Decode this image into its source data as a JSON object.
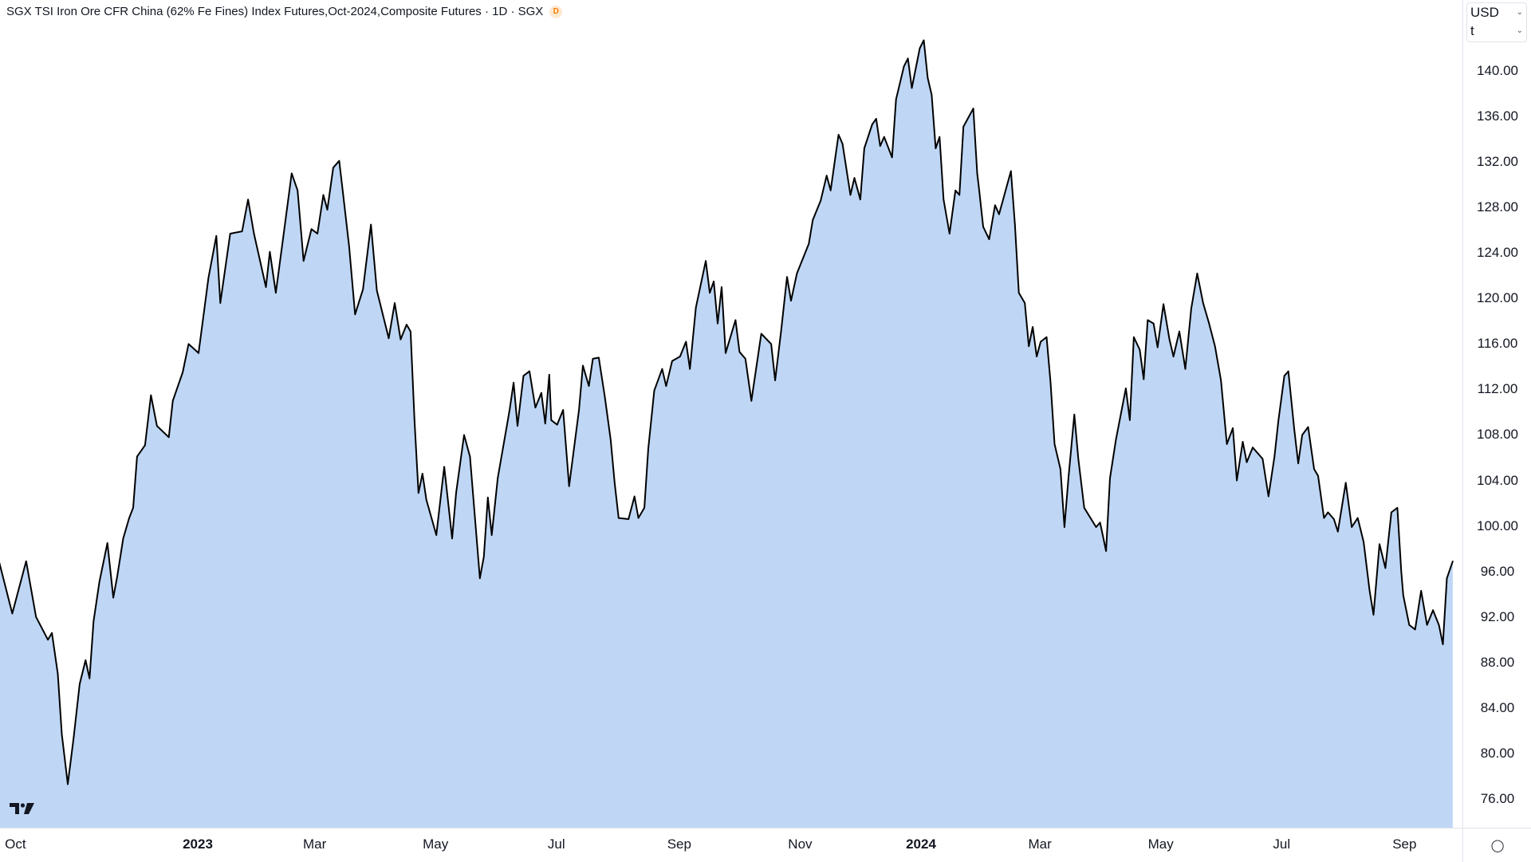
{
  "header": {
    "title": "SGX TSI Iron Ore CFR China (62% Fe Fines) Index Futures,Oct-2024,Composite Futures · 1D · SGX",
    "badge": "D"
  },
  "unit_selector": {
    "currency": "USD",
    "unit": "t"
  },
  "settings_icon": "gear-icon",
  "colors": {
    "line": "#000000",
    "area_fill": "#bfd7f5",
    "badge": "#f57c00"
  },
  "chart_data": {
    "type": "area",
    "title": "SGX TSI Iron Ore CFR China (62% Fe Fines) Index Futures,Oct-2024,Composite Futures · 1D · SGX",
    "xlabel": "",
    "ylabel": "",
    "ylim": [
      72.5,
      146.5
    ],
    "grid": false,
    "legend": "none",
    "y_ticks": [
      "140.00",
      "136.00",
      "132.00",
      "128.00",
      "124.00",
      "120.00",
      "116.00",
      "112.00",
      "108.00",
      "104.00",
      "100.00",
      "96.00",
      "92.00",
      "88.00",
      "84.00",
      "80.00",
      "76.00"
    ],
    "x_ticks": [
      {
        "label": "Oct",
        "date": "2022-10-01",
        "year": false
      },
      {
        "label": "2023",
        "date": "2023-01-01",
        "year": true
      },
      {
        "label": "Mar",
        "date": "2023-03-01",
        "year": false
      },
      {
        "label": "May",
        "date": "2023-05-01",
        "year": false
      },
      {
        "label": "Jul",
        "date": "2023-07-01",
        "year": false
      },
      {
        "label": "Sep",
        "date": "2023-09-01",
        "year": false
      },
      {
        "label": "Nov",
        "date": "2023-11-01",
        "year": false
      },
      {
        "label": "2024",
        "date": "2024-01-01",
        "year": true
      },
      {
        "label": "Mar",
        "date": "2024-03-01",
        "year": false
      },
      {
        "label": "May",
        "date": "2024-05-01",
        "year": false
      },
      {
        "label": "Jul",
        "date": "2024-07-01",
        "year": false
      },
      {
        "label": "Sep",
        "date": "2024-09-01",
        "year": false
      }
    ],
    "series": [
      {
        "points": [
          [
            "2022-09-24",
            97.1
          ],
          [
            "2022-10-01",
            92.3
          ],
          [
            "2022-10-08",
            96.9
          ],
          [
            "2022-10-13",
            92.0
          ],
          [
            "2022-10-19",
            90.0
          ],
          [
            "2022-10-21",
            90.6
          ],
          [
            "2022-10-24",
            87.0
          ],
          [
            "2022-10-26",
            81.7
          ],
          [
            "2022-10-29",
            77.3
          ],
          [
            "2022-11-01",
            81.4
          ],
          [
            "2022-11-04",
            86.1
          ],
          [
            "2022-11-07",
            88.2
          ],
          [
            "2022-11-09",
            86.6
          ],
          [
            "2022-11-11",
            91.6
          ],
          [
            "2022-11-14",
            95.1
          ],
          [
            "2022-11-18",
            98.5
          ],
          [
            "2022-11-21",
            93.7
          ],
          [
            "2022-11-23",
            95.6
          ],
          [
            "2022-11-26",
            98.9
          ],
          [
            "2022-11-29",
            100.7
          ],
          [
            "2022-12-01",
            101.6
          ],
          [
            "2022-12-03",
            106.1
          ],
          [
            "2022-12-07",
            107.1
          ],
          [
            "2022-12-10",
            111.5
          ],
          [
            "2022-12-13",
            108.8
          ],
          [
            "2022-12-19",
            107.8
          ],
          [
            "2022-12-21",
            111.0
          ],
          [
            "2022-12-26",
            113.5
          ],
          [
            "2022-12-29",
            116.0
          ],
          [
            "2023-01-03",
            115.2
          ],
          [
            "2023-01-05",
            117.8
          ],
          [
            "2023-01-08",
            121.8
          ],
          [
            "2023-01-12",
            125.5
          ],
          [
            "2023-01-14",
            119.6
          ],
          [
            "2023-01-19",
            125.7
          ],
          [
            "2023-01-25",
            125.9
          ],
          [
            "2023-01-28",
            128.7
          ],
          [
            "2023-01-31",
            125.7
          ],
          [
            "2023-02-06",
            121.0
          ],
          [
            "2023-02-08",
            124.1
          ],
          [
            "2023-02-11",
            120.5
          ],
          [
            "2023-02-15",
            125.7
          ],
          [
            "2023-02-19",
            131.0
          ],
          [
            "2023-02-22",
            129.5
          ],
          [
            "2023-02-25",
            123.3
          ],
          [
            "2023-03-01",
            126.1
          ],
          [
            "2023-03-04",
            125.7
          ],
          [
            "2023-03-07",
            129.1
          ],
          [
            "2023-03-09",
            127.8
          ],
          [
            "2023-03-12",
            131.5
          ],
          [
            "2023-03-15",
            132.1
          ],
          [
            "2023-03-17",
            129.1
          ],
          [
            "2023-03-20",
            124.6
          ],
          [
            "2023-03-23",
            118.6
          ],
          [
            "2023-03-27",
            120.8
          ],
          [
            "2023-03-31",
            126.5
          ],
          [
            "2023-04-03",
            120.7
          ],
          [
            "2023-04-09",
            116.5
          ],
          [
            "2023-04-12",
            119.6
          ],
          [
            "2023-04-15",
            116.4
          ],
          [
            "2023-04-18",
            117.7
          ],
          [
            "2023-04-20",
            117.1
          ],
          [
            "2023-04-22",
            109.3
          ],
          [
            "2023-04-24",
            102.9
          ],
          [
            "2023-04-26",
            104.6
          ],
          [
            "2023-04-28",
            102.3
          ],
          [
            "2023-05-03",
            99.2
          ],
          [
            "2023-05-07",
            105.2
          ],
          [
            "2023-05-11",
            98.9
          ],
          [
            "2023-05-13",
            102.9
          ],
          [
            "2023-05-17",
            108.0
          ],
          [
            "2023-05-20",
            106.1
          ],
          [
            "2023-05-25",
            95.4
          ],
          [
            "2023-05-27",
            97.3
          ],
          [
            "2023-05-29",
            102.5
          ],
          [
            "2023-05-31",
            99.2
          ],
          [
            "2023-06-03",
            104.2
          ],
          [
            "2023-06-09",
            110.2
          ],
          [
            "2023-06-11",
            112.6
          ],
          [
            "2023-06-13",
            108.8
          ],
          [
            "2023-06-16",
            113.2
          ],
          [
            "2023-06-19",
            113.6
          ],
          [
            "2023-06-22",
            110.4
          ],
          [
            "2023-06-25",
            111.7
          ],
          [
            "2023-06-27",
            109.0
          ],
          [
            "2023-06-29",
            113.3
          ],
          [
            "2023-06-30",
            109.3
          ],
          [
            "2023-07-03",
            108.9
          ],
          [
            "2023-07-06",
            110.2
          ],
          [
            "2023-07-09",
            103.5
          ],
          [
            "2023-07-14",
            110.2
          ],
          [
            "2023-07-16",
            114.1
          ],
          [
            "2023-07-19",
            112.3
          ],
          [
            "2023-07-21",
            114.7
          ],
          [
            "2023-07-24",
            114.8
          ],
          [
            "2023-07-27",
            111.4
          ],
          [
            "2023-07-30",
            107.6
          ],
          [
            "2023-08-01",
            103.8
          ],
          [
            "2023-08-03",
            100.7
          ],
          [
            "2023-08-08",
            100.6
          ],
          [
            "2023-08-11",
            102.6
          ],
          [
            "2023-08-13",
            100.7
          ],
          [
            "2023-08-16",
            101.6
          ],
          [
            "2023-08-18",
            106.8
          ],
          [
            "2023-08-21",
            111.9
          ],
          [
            "2023-08-25",
            113.8
          ],
          [
            "2023-08-27",
            112.3
          ],
          [
            "2023-08-30",
            114.5
          ],
          [
            "2023-09-03",
            114.9
          ],
          [
            "2023-09-06",
            116.2
          ],
          [
            "2023-09-08",
            113.8
          ],
          [
            "2023-09-11",
            119.2
          ],
          [
            "2023-09-16",
            123.3
          ],
          [
            "2023-09-18",
            120.5
          ],
          [
            "2023-09-20",
            121.5
          ],
          [
            "2023-09-22",
            117.8
          ],
          [
            "2023-09-24",
            121.0
          ],
          [
            "2023-09-26",
            115.2
          ],
          [
            "2023-10-01",
            118.1
          ],
          [
            "2023-10-03",
            115.3
          ],
          [
            "2023-10-06",
            114.7
          ],
          [
            "2023-10-09",
            111.0
          ],
          [
            "2023-10-14",
            116.9
          ],
          [
            "2023-10-19",
            116.0
          ],
          [
            "2023-10-21",
            112.8
          ],
          [
            "2023-10-24",
            117.1
          ],
          [
            "2023-10-27",
            121.9
          ],
          [
            "2023-10-29",
            119.8
          ],
          [
            "2023-11-01",
            122.2
          ],
          [
            "2023-11-07",
            124.8
          ],
          [
            "2023-11-09",
            126.9
          ],
          [
            "2023-11-13",
            128.6
          ],
          [
            "2023-11-16",
            130.8
          ],
          [
            "2023-11-18",
            129.5
          ],
          [
            "2023-11-22",
            134.4
          ],
          [
            "2023-11-24",
            133.6
          ],
          [
            "2023-11-28",
            129.1
          ],
          [
            "2023-11-30",
            130.6
          ],
          [
            "2023-12-03",
            128.7
          ],
          [
            "2023-12-05",
            133.2
          ],
          [
            "2023-12-09",
            135.3
          ],
          [
            "2023-12-11",
            135.8
          ],
          [
            "2023-12-13",
            133.4
          ],
          [
            "2023-12-15",
            134.2
          ],
          [
            "2023-12-19",
            132.4
          ],
          [
            "2023-12-21",
            137.5
          ],
          [
            "2023-12-25",
            140.4
          ],
          [
            "2023-12-27",
            141.1
          ],
          [
            "2023-12-29",
            138.5
          ],
          [
            "2024-01-02",
            142.0
          ],
          [
            "2024-01-04",
            142.7
          ],
          [
            "2024-01-06",
            139.4
          ],
          [
            "2024-01-08",
            137.9
          ],
          [
            "2024-01-10",
            133.2
          ],
          [
            "2024-01-12",
            134.2
          ],
          [
            "2024-01-14",
            128.7
          ],
          [
            "2024-01-17",
            125.7
          ],
          [
            "2024-01-20",
            129.5
          ],
          [
            "2024-01-22",
            129.1
          ],
          [
            "2024-01-24",
            135.1
          ],
          [
            "2024-01-29",
            136.7
          ],
          [
            "2024-01-31",
            131.0
          ],
          [
            "2024-02-01",
            129.5
          ],
          [
            "2024-02-03",
            126.3
          ],
          [
            "2024-02-06",
            125.2
          ],
          [
            "2024-02-09",
            128.2
          ],
          [
            "2024-02-11",
            127.4
          ],
          [
            "2024-02-17",
            131.2
          ],
          [
            "2024-02-19",
            126.5
          ],
          [
            "2024-02-21",
            120.5
          ],
          [
            "2024-02-24",
            119.6
          ],
          [
            "2024-02-26",
            115.8
          ],
          [
            "2024-02-28",
            117.5
          ],
          [
            "2024-03-01",
            114.9
          ],
          [
            "2024-03-03",
            116.2
          ],
          [
            "2024-03-06",
            116.6
          ],
          [
            "2024-03-08",
            112.6
          ],
          [
            "2024-03-10",
            107.2
          ],
          [
            "2024-03-13",
            105.0
          ],
          [
            "2024-03-15",
            99.9
          ],
          [
            "2024-03-17",
            104.2
          ],
          [
            "2024-03-20",
            109.8
          ],
          [
            "2024-03-22",
            105.9
          ],
          [
            "2024-03-25",
            101.6
          ],
          [
            "2024-03-31",
            99.9
          ],
          [
            "2024-04-02",
            100.3
          ],
          [
            "2024-04-05",
            97.8
          ],
          [
            "2024-04-07",
            104.2
          ],
          [
            "2024-04-10",
            107.6
          ],
          [
            "2024-04-15",
            112.1
          ],
          [
            "2024-04-17",
            109.3
          ],
          [
            "2024-04-19",
            116.6
          ],
          [
            "2024-04-22",
            115.5
          ],
          [
            "2024-04-24",
            112.9
          ],
          [
            "2024-04-26",
            118.1
          ],
          [
            "2024-04-29",
            117.8
          ],
          [
            "2024-05-01",
            115.7
          ],
          [
            "2024-05-04",
            119.5
          ],
          [
            "2024-05-07",
            116.4
          ],
          [
            "2024-05-09",
            114.9
          ],
          [
            "2024-05-12",
            117.1
          ],
          [
            "2024-05-15",
            113.8
          ],
          [
            "2024-05-18",
            119.1
          ],
          [
            "2024-05-21",
            122.2
          ],
          [
            "2024-05-24",
            119.6
          ],
          [
            "2024-05-27",
            117.8
          ],
          [
            "2024-05-30",
            115.8
          ],
          [
            "2024-06-02",
            112.8
          ],
          [
            "2024-06-05",
            107.2
          ],
          [
            "2024-06-08",
            108.6
          ],
          [
            "2024-06-10",
            104.0
          ],
          [
            "2024-06-13",
            107.4
          ],
          [
            "2024-06-15",
            105.6
          ],
          [
            "2024-06-18",
            106.9
          ],
          [
            "2024-06-23",
            105.9
          ],
          [
            "2024-06-26",
            102.6
          ],
          [
            "2024-06-29",
            106.1
          ],
          [
            "2024-07-01",
            109.3
          ],
          [
            "2024-07-04",
            113.2
          ],
          [
            "2024-07-06",
            113.6
          ],
          [
            "2024-07-09",
            108.5
          ],
          [
            "2024-07-11",
            105.5
          ],
          [
            "2024-07-13",
            108.0
          ],
          [
            "2024-07-16",
            108.7
          ],
          [
            "2024-07-19",
            105.0
          ],
          [
            "2024-07-21",
            104.4
          ],
          [
            "2024-07-24",
            100.7
          ],
          [
            "2024-07-26",
            101.2
          ],
          [
            "2024-07-29",
            100.6
          ],
          [
            "2024-07-31",
            99.5
          ],
          [
            "2024-08-04",
            103.8
          ],
          [
            "2024-08-07",
            99.9
          ],
          [
            "2024-08-10",
            100.7
          ],
          [
            "2024-08-13",
            98.6
          ],
          [
            "2024-08-16",
            94.3
          ],
          [
            "2024-08-18",
            92.2
          ],
          [
            "2024-08-21",
            98.4
          ],
          [
            "2024-08-24",
            96.3
          ],
          [
            "2024-08-27",
            101.2
          ],
          [
            "2024-08-30",
            101.6
          ],
          [
            "2024-09-01",
            96.0
          ],
          [
            "2024-09-02",
            93.9
          ],
          [
            "2024-09-05",
            91.3
          ],
          [
            "2024-09-08",
            90.9
          ],
          [
            "2024-09-11",
            94.3
          ],
          [
            "2024-09-14",
            91.3
          ],
          [
            "2024-09-17",
            92.6
          ],
          [
            "2024-09-20",
            91.3
          ],
          [
            "2024-09-22",
            89.6
          ],
          [
            "2024-09-24",
            95.4
          ],
          [
            "2024-09-27",
            96.9
          ]
        ]
      }
    ]
  }
}
